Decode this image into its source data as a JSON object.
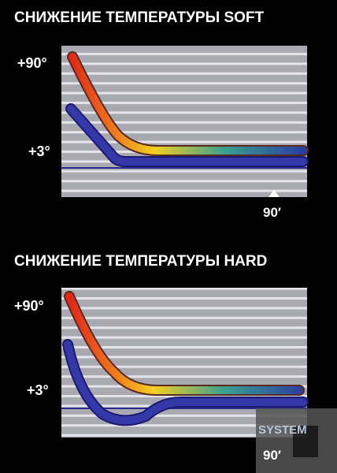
{
  "charts": [
    {
      "title": "СНИЖЕНИЕ ТЕМПЕРАТУРЫ SOFT",
      "top_label": "+90°",
      "bottom_label": "+3°",
      "time_label": "90′"
    },
    {
      "title": "СНИЖЕНИЕ ТЕМПЕРАТУРЫ HARD",
      "top_label": "+90°",
      "bottom_label": "+3°",
      "time_label": "90′"
    }
  ],
  "watermark": "SYSTEM"
}
